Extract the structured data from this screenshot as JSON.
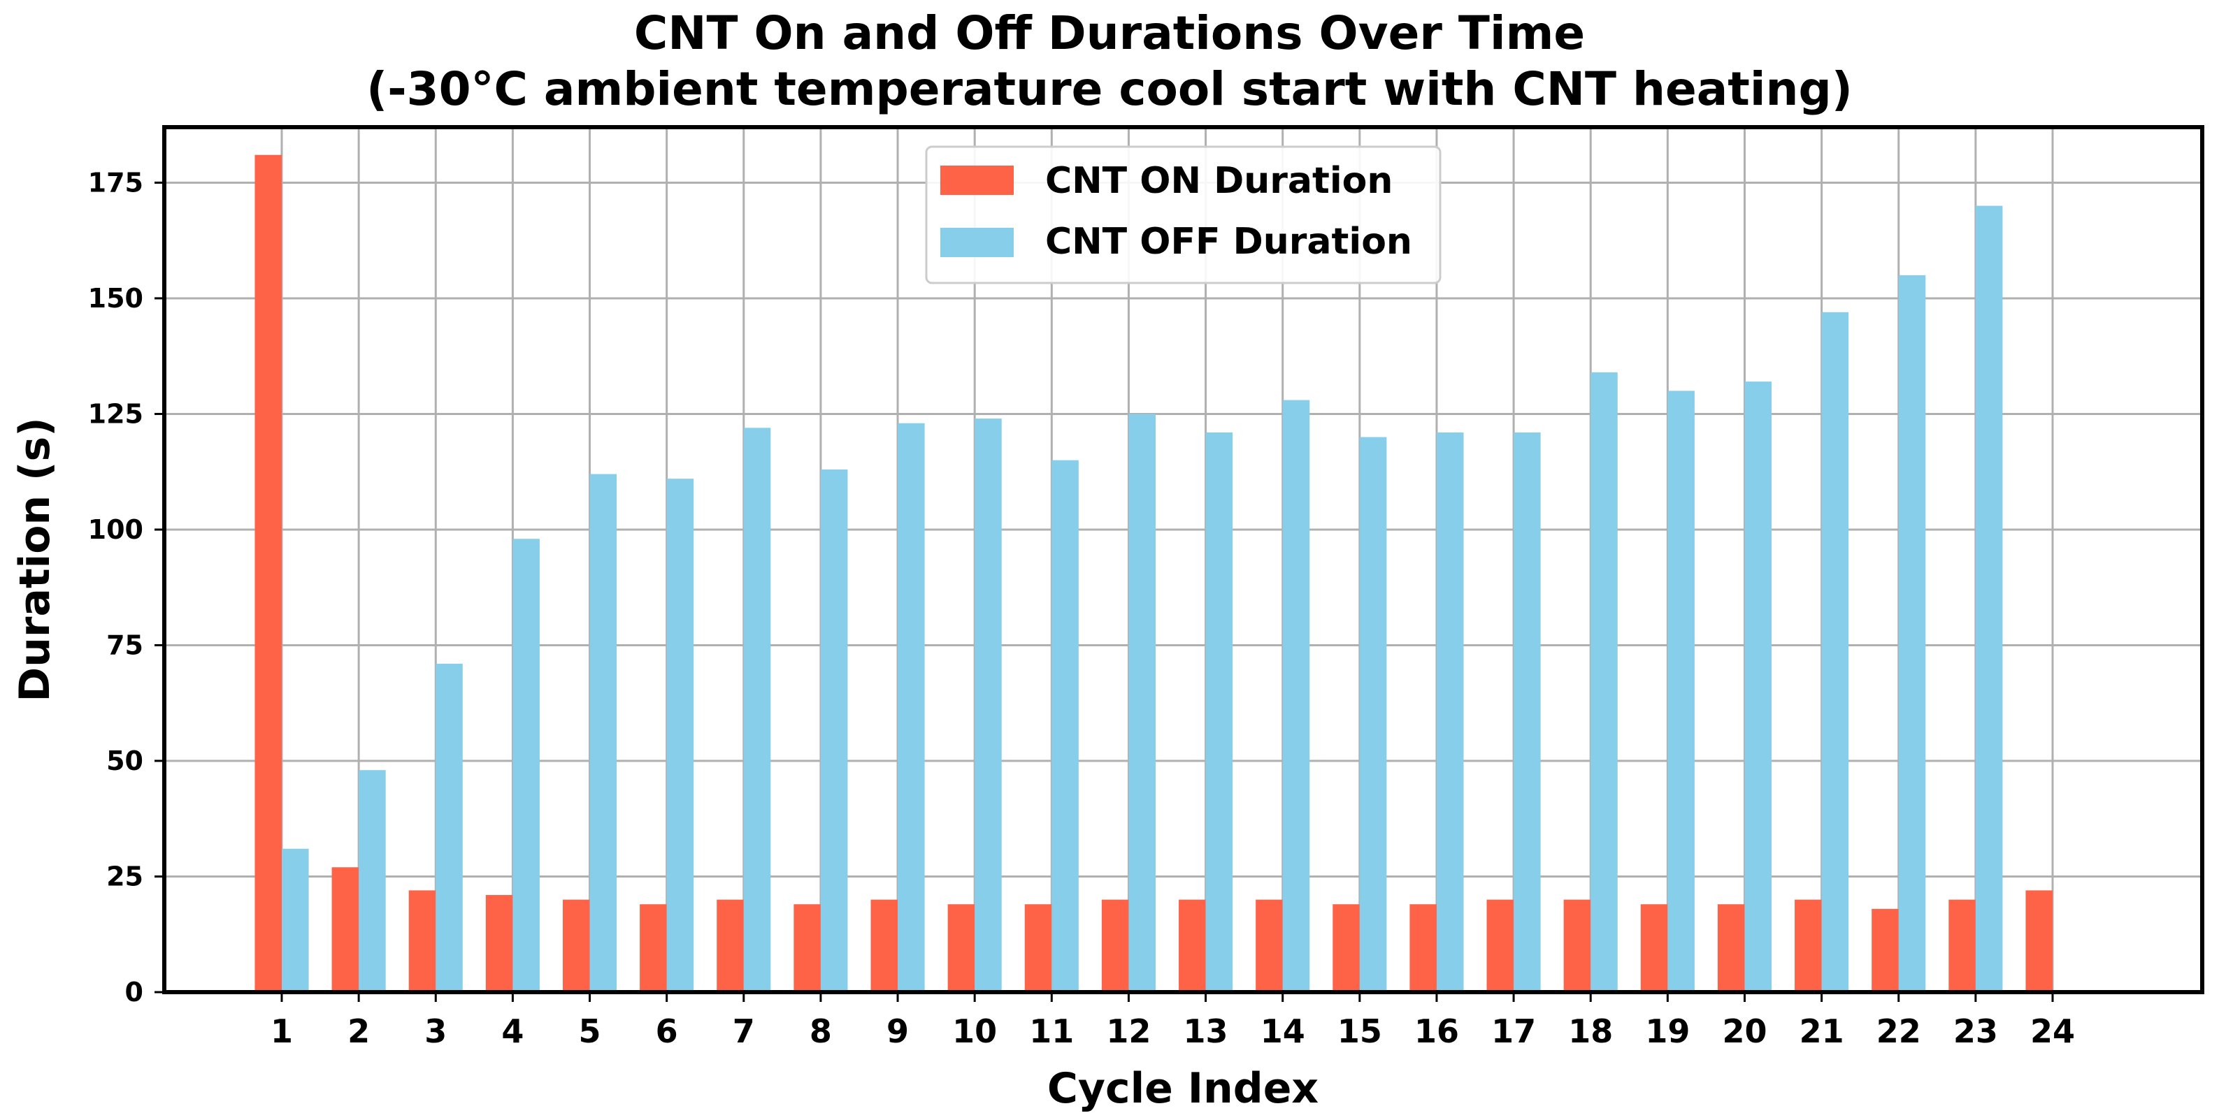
{
  "chart_data": {
    "type": "bar",
    "title": "CNT On and Off Durations Over Time",
    "subtitle": "(-30°C ambient temperature cool start with CNT heating)",
    "xlabel": "Cycle Index",
    "ylabel": "Duration (s)",
    "categories": [
      "1",
      "2",
      "3",
      "4",
      "5",
      "6",
      "7",
      "8",
      "9",
      "10",
      "11",
      "12",
      "13",
      "14",
      "15",
      "16",
      "17",
      "18",
      "19",
      "20",
      "21",
      "22",
      "23",
      "24"
    ],
    "series": [
      {
        "name": "CNT ON Duration",
        "color": "#ff6347",
        "values": [
          181,
          27,
          22,
          21,
          20,
          19,
          20,
          19,
          20,
          19,
          19,
          20,
          20,
          20,
          19,
          19,
          20,
          20,
          19,
          19,
          20,
          18,
          20,
          22
        ]
      },
      {
        "name": "CNT OFF Duration",
        "color": "#87ceeb",
        "values": [
          31,
          48,
          71,
          98,
          112,
          111,
          122,
          113,
          123,
          124,
          115,
          125,
          121,
          128,
          120,
          121,
          121,
          134,
          130,
          132,
          147,
          155,
          170,
          null
        ]
      }
    ],
    "ylim": [
      0,
      187
    ],
    "yticks": [
      0,
      25,
      50,
      75,
      100,
      125,
      150,
      175
    ],
    "grid": true,
    "legend_position": "top-center"
  }
}
